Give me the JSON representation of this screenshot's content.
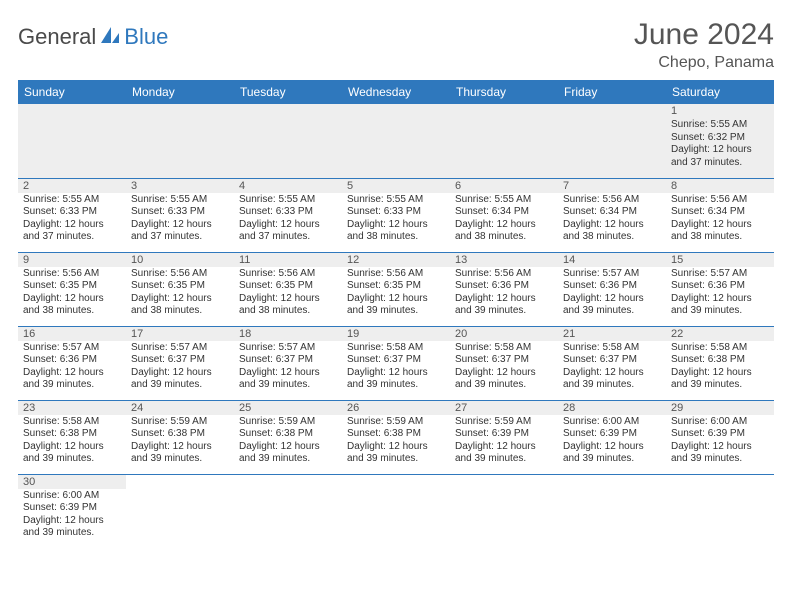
{
  "logo": {
    "general": "General",
    "blue": "Blue"
  },
  "title": "June 2024",
  "location": "Chepo, Panama",
  "colors": {
    "header_bg": "#2f78bd",
    "header_text": "#ffffff",
    "daynum_bg": "#eeeeee",
    "border": "#2f78bd",
    "text": "#333333",
    "title_text": "#555555"
  },
  "weekdays": [
    "Sunday",
    "Monday",
    "Tuesday",
    "Wednesday",
    "Thursday",
    "Friday",
    "Saturday"
  ],
  "days": {
    "1": {
      "sunrise": "5:55 AM",
      "sunset": "6:32 PM",
      "daylight": "12 hours and 37 minutes."
    },
    "2": {
      "sunrise": "5:55 AM",
      "sunset": "6:33 PM",
      "daylight": "12 hours and 37 minutes."
    },
    "3": {
      "sunrise": "5:55 AM",
      "sunset": "6:33 PM",
      "daylight": "12 hours and 37 minutes."
    },
    "4": {
      "sunrise": "5:55 AM",
      "sunset": "6:33 PM",
      "daylight": "12 hours and 37 minutes."
    },
    "5": {
      "sunrise": "5:55 AM",
      "sunset": "6:33 PM",
      "daylight": "12 hours and 38 minutes."
    },
    "6": {
      "sunrise": "5:55 AM",
      "sunset": "6:34 PM",
      "daylight": "12 hours and 38 minutes."
    },
    "7": {
      "sunrise": "5:56 AM",
      "sunset": "6:34 PM",
      "daylight": "12 hours and 38 minutes."
    },
    "8": {
      "sunrise": "5:56 AM",
      "sunset": "6:34 PM",
      "daylight": "12 hours and 38 minutes."
    },
    "9": {
      "sunrise": "5:56 AM",
      "sunset": "6:35 PM",
      "daylight": "12 hours and 38 minutes."
    },
    "10": {
      "sunrise": "5:56 AM",
      "sunset": "6:35 PM",
      "daylight": "12 hours and 38 minutes."
    },
    "11": {
      "sunrise": "5:56 AM",
      "sunset": "6:35 PM",
      "daylight": "12 hours and 38 minutes."
    },
    "12": {
      "sunrise": "5:56 AM",
      "sunset": "6:35 PM",
      "daylight": "12 hours and 39 minutes."
    },
    "13": {
      "sunrise": "5:56 AM",
      "sunset": "6:36 PM",
      "daylight": "12 hours and 39 minutes."
    },
    "14": {
      "sunrise": "5:57 AM",
      "sunset": "6:36 PM",
      "daylight": "12 hours and 39 minutes."
    },
    "15": {
      "sunrise": "5:57 AM",
      "sunset": "6:36 PM",
      "daylight": "12 hours and 39 minutes."
    },
    "16": {
      "sunrise": "5:57 AM",
      "sunset": "6:36 PM",
      "daylight": "12 hours and 39 minutes."
    },
    "17": {
      "sunrise": "5:57 AM",
      "sunset": "6:37 PM",
      "daylight": "12 hours and 39 minutes."
    },
    "18": {
      "sunrise": "5:57 AM",
      "sunset": "6:37 PM",
      "daylight": "12 hours and 39 minutes."
    },
    "19": {
      "sunrise": "5:58 AM",
      "sunset": "6:37 PM",
      "daylight": "12 hours and 39 minutes."
    },
    "20": {
      "sunrise": "5:58 AM",
      "sunset": "6:37 PM",
      "daylight": "12 hours and 39 minutes."
    },
    "21": {
      "sunrise": "5:58 AM",
      "sunset": "6:37 PM",
      "daylight": "12 hours and 39 minutes."
    },
    "22": {
      "sunrise": "5:58 AM",
      "sunset": "6:38 PM",
      "daylight": "12 hours and 39 minutes."
    },
    "23": {
      "sunrise": "5:58 AM",
      "sunset": "6:38 PM",
      "daylight": "12 hours and 39 minutes."
    },
    "24": {
      "sunrise": "5:59 AM",
      "sunset": "6:38 PM",
      "daylight": "12 hours and 39 minutes."
    },
    "25": {
      "sunrise": "5:59 AM",
      "sunset": "6:38 PM",
      "daylight": "12 hours and 39 minutes."
    },
    "26": {
      "sunrise": "5:59 AM",
      "sunset": "6:38 PM",
      "daylight": "12 hours and 39 minutes."
    },
    "27": {
      "sunrise": "5:59 AM",
      "sunset": "6:39 PM",
      "daylight": "12 hours and 39 minutes."
    },
    "28": {
      "sunrise": "6:00 AM",
      "sunset": "6:39 PM",
      "daylight": "12 hours and 39 minutes."
    },
    "29": {
      "sunrise": "6:00 AM",
      "sunset": "6:39 PM",
      "daylight": "12 hours and 39 minutes."
    },
    "30": {
      "sunrise": "6:00 AM",
      "sunset": "6:39 PM",
      "daylight": "12 hours and 39 minutes."
    }
  },
  "labels": {
    "sunrise": "Sunrise: ",
    "sunset": "Sunset: ",
    "daylight": "Daylight: "
  },
  "layout": {
    "first_weekday_index": 6,
    "num_days": 30,
    "columns": 7
  }
}
